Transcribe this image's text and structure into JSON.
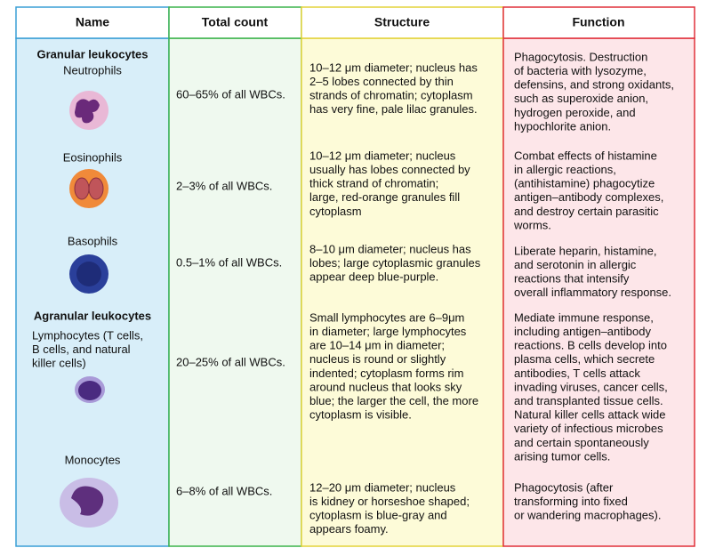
{
  "header": [
    "Name",
    "Total count",
    "Structure",
    "Function"
  ],
  "rows": [
    {
      "group": "Granular leukocytes",
      "name": [
        "Neutrophils"
      ],
      "count": "60–65% of all WBCs.",
      "structure": [
        "10–12 μm diameter; nucleus has",
        "2–5 lobes connected by thin",
        "strands of chromatin; cytoplasm",
        "has very fine, pale lilac granules."
      ],
      "function": [
        "Phagocytosis. Destruction",
        "of bacteria with lysozyme,",
        "defensins, and strong oxidants,",
        "such as superoxide anion,",
        "hydrogen peroxide, and",
        "hypochlorite anion."
      ]
    },
    {
      "name": [
        "Eosinophils"
      ],
      "count": "2–3% of all WBCs.",
      "structure": [
        "10–12 μm diameter; nucleus",
        "usually has lobes connected by",
        "thick strand of chromatin;",
        "large, red-orange granules fill",
        "cytoplasm"
      ],
      "function": [
        "Combat effects of histamine",
        "in allergic reactions,",
        "(antihistamine) phagocytize",
        "antigen–antibody complexes,",
        "and destroy certain parasitic",
        "worms."
      ]
    },
    {
      "name": [
        "Basophils"
      ],
      "count": "0.5–1% of all WBCs.",
      "structure": [
        "8–10 μm diameter; nucleus has",
        "lobes; large cytoplasmic granules",
        "appear deep blue-purple."
      ],
      "function": [
        "Liberate heparin, histamine,",
        "and serotonin in allergic",
        "reactions that intensify",
        "overall inflammatory response."
      ]
    },
    {
      "group": "Agranular leukocytes",
      "name": [
        "Lymphocytes (T cells,",
        "B cells, and natural",
        "killer cells)"
      ],
      "count": "20–25% of all WBCs.",
      "structure": [
        "Small lymphocytes are 6–9μm",
        "in diameter; large lymphocytes",
        "are 10–14 μm in diameter;",
        "nucleus is round or slightly",
        "indented; cytoplasm forms rim",
        "around nucleus that looks sky",
        "blue; the larger the cell, the more",
        "cytoplasm is visible."
      ],
      "function": [
        "Mediate immune response,",
        "including antigen–antibody",
        "reactions. B cells develop into",
        "plasma cells, which secrete",
        "antibodies, T cells attack",
        "invading viruses, cancer cells,",
        "and transplanted tissue cells.",
        "Natural killer cells attack wide",
        "variety of infectious microbes",
        "and certain spontaneously",
        "arising tumor cells."
      ]
    },
    {
      "name": [
        "Monocytes"
      ],
      "count": "6–8% of all WBCs.",
      "structure": [
        "12–20 μm diameter; nucleus",
        "is kidney or horseshoe shaped;",
        "cytoplasm is blue-gray and",
        "appears foamy."
      ],
      "function": [
        "Phagocytosis (after",
        "transforming into fixed",
        "or wandering macrophages)."
      ]
    }
  ]
}
